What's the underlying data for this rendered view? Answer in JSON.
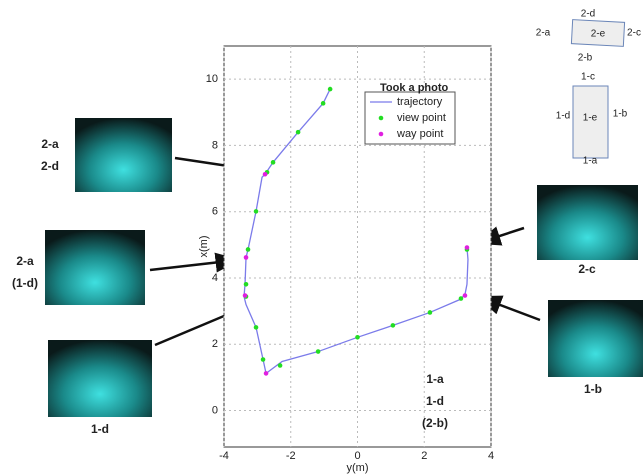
{
  "chart_data": {
    "type": "line",
    "x_label": "y(m)",
    "y_label": "x(m)",
    "xlim": [
      -4,
      4
    ],
    "ylim": [
      -1.1,
      11
    ],
    "xticks": [
      -4,
      -2,
      0,
      2,
      4
    ],
    "yticks": [
      0,
      2,
      4,
      6,
      8,
      10
    ],
    "grid": true,
    "legend_title": "Took a photo",
    "series": [
      {
        "name": "trajectory",
        "type": "line",
        "color": "#7b7bea",
        "x": [
          -0.82,
          -1.03,
          -1.78,
          -2.53,
          -2.77,
          -2.86,
          -3.04,
          -3.28,
          -3.34,
          -3.37,
          -3.4,
          -3.34,
          -3.04,
          -2.83,
          -2.74,
          -2.26,
          -1.18,
          0,
          1.06,
          2.17,
          3.07,
          3.22,
          3.28,
          3.31,
          3.28
        ],
        "values": [
          9.7,
          9.27,
          8.4,
          7.49,
          7.13,
          7.04,
          6.01,
          4.86,
          4.62,
          3.81,
          3.44,
          3.2,
          2.51,
          1.54,
          1.12,
          1.48,
          1.78,
          2.21,
          2.57,
          2.96,
          3.35,
          3.5,
          3.81,
          4.56,
          4.92
        ]
      },
      {
        "name": "view point",
        "type": "scatter",
        "color": "#22dd22",
        "x": [
          -0.82,
          -1.03,
          -1.78,
          -2.53,
          -2.71,
          -3.04,
          -3.28,
          -3.34,
          -3.34,
          -3.04,
          -2.83,
          -2.32,
          -1.18,
          0,
          1.06,
          2.17,
          3.1,
          3.28
        ],
        "values": [
          9.7,
          9.27,
          8.4,
          7.49,
          7.19,
          6.01,
          4.86,
          3.81,
          3.44,
          2.51,
          1.54,
          1.36,
          1.78,
          2.21,
          2.57,
          2.96,
          3.38,
          4.86
        ]
      },
      {
        "name": "way point",
        "type": "scatter",
        "color": "#e020e0",
        "x": [
          -2.77,
          -3.34,
          -3.37,
          -2.74,
          3.22,
          3.28
        ],
        "values": [
          7.13,
          4.62,
          3.47,
          1.12,
          3.47,
          4.92
        ]
      }
    ],
    "photo_labels": [
      [
        "2-a",
        "2-d"
      ],
      [
        "2-a",
        "(1-d)"
      ],
      [
        "1-d"
      ],
      [
        "1-a",
        "1-d",
        "(2-b)"
      ],
      [
        "2-c"
      ],
      [
        "1-b"
      ]
    ],
    "sensor_diagram": {
      "box2": [
        "2-d",
        "2-a",
        "2-e",
        "2-c",
        "2-b"
      ],
      "box1": [
        "1-c",
        "1-d",
        "1-e",
        "1-b",
        "1-a"
      ]
    }
  }
}
